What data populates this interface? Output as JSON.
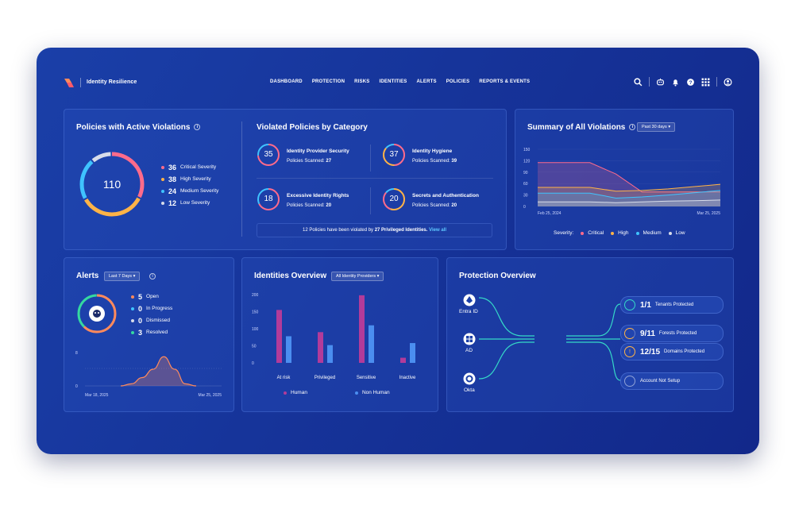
{
  "header": {
    "brand": "Identity Resilience",
    "nav": [
      "DASHBOARD",
      "PROTECTION",
      "RISKS",
      "IDENTITIES",
      "ALERTS",
      "POLICIES",
      "REPORTS & EVENTS"
    ]
  },
  "violations_card": {
    "title": "Policies with Active Violations",
    "total": "110",
    "items": [
      {
        "count": "36",
        "label": "Critical Severity",
        "color": "#ff6b8b"
      },
      {
        "count": "38",
        "label": "High Severity",
        "color": "#ffb347"
      },
      {
        "count": "24",
        "label": "Medium Severity",
        "color": "#3fc3ff"
      },
      {
        "count": "12",
        "label": "Low Severity",
        "color": "#d7dcea"
      }
    ]
  },
  "category_card": {
    "title": "Violated Policies by Category",
    "scanned_label": "Policies Scanned:",
    "policies": [
      {
        "num": "35",
        "name": "Identity Provider Security",
        "scanned": "27"
      },
      {
        "num": "37",
        "name": "Identity Hygiene",
        "scanned": "39"
      },
      {
        "num": "18",
        "name": "Excessive Identity Rights",
        "scanned": "20"
      },
      {
        "num": "20",
        "name": "Secrets and Authentication",
        "scanned": "20"
      }
    ],
    "banner_pre": "12 Policies have been violated by ",
    "banner_bold": "27 Privileged Identities.",
    "banner_link": "View all"
  },
  "summary_card": {
    "title": "Summary of All Violations",
    "range": "Past 30 days",
    "y_ticks": [
      "150",
      "120",
      "90",
      "60",
      "30",
      "0"
    ],
    "x_start": "Feb 25, 2024",
    "x_end": "Mar 25, 2025",
    "legend_title": "Severity:",
    "legend": [
      {
        "label": "Critical",
        "color": "#ff6b8b"
      },
      {
        "label": "High",
        "color": "#ffb347"
      },
      {
        "label": "Medium",
        "color": "#3fc3ff"
      },
      {
        "label": "Low",
        "color": "#d7dcea"
      }
    ]
  },
  "alerts_card": {
    "title": "Alerts",
    "range": "Last 7 Days",
    "items": [
      {
        "count": "5",
        "label": "Open",
        "color": "#ff8a5c"
      },
      {
        "count": "0",
        "label": "In Progress",
        "color": "#3fc3ff"
      },
      {
        "count": "0",
        "label": "Dismissed",
        "color": "#d7dcea"
      },
      {
        "count": "3",
        "label": "Resolved",
        "color": "#35d9a0"
      }
    ],
    "y_top": "8",
    "y_bottom": "0",
    "x_start": "Mar 18, 2025",
    "x_end": "Mar 25, 2025"
  },
  "identities_card": {
    "title": "Identities Overview",
    "filter": "All Identity Providers",
    "y_ticks": [
      "200",
      "150",
      "100",
      "50",
      "0"
    ],
    "legend": [
      {
        "label": "Human",
        "color": "#b23b9a"
      },
      {
        "label": "Non Human",
        "color": "#4b8ef0"
      }
    ]
  },
  "protection_card": {
    "title": "Protection Overview",
    "sources": [
      "Entra ID",
      "AD",
      "Okta"
    ],
    "tags": [
      {
        "value": "1/1",
        "label": "Tenants Protected"
      },
      {
        "value": "9/11",
        "label": "Forests Protected"
      },
      {
        "value": "12/15",
        "label": "Domains Protected"
      },
      {
        "value": "",
        "label": "Account Not Setup"
      }
    ]
  },
  "chart_data": [
    {
      "type": "pie",
      "title": "Policies with Active Violations",
      "categories": [
        "Critical Severity",
        "High Severity",
        "Medium Severity",
        "Low Severity"
      ],
      "values": [
        36,
        38,
        24,
        12
      ],
      "colors": [
        "#ff6b8b",
        "#ffb347",
        "#3fc3ff",
        "#d7dcea"
      ]
    },
    {
      "type": "area",
      "title": "Summary of All Violations",
      "x": [
        "Feb 25, 2024",
        "",
        "",
        "",
        "",
        "",
        "",
        "Mar 25, 2025"
      ],
      "ylim": [
        0,
        150
      ],
      "series": [
        {
          "name": "Critical",
          "values": [
            115,
            115,
            115,
            85,
            38,
            38,
            38,
            38
          ],
          "color": "#ff6b8b"
        },
        {
          "name": "High",
          "values": [
            50,
            50,
            50,
            40,
            42,
            46,
            52,
            58
          ],
          "color": "#ffb347"
        },
        {
          "name": "Medium",
          "values": [
            35,
            35,
            35,
            22,
            25,
            30,
            36,
            42
          ],
          "color": "#3fc3ff"
        },
        {
          "name": "Low",
          "values": [
            12,
            12,
            12,
            10,
            12,
            14,
            15,
            17
          ],
          "color": "#d7dcea"
        }
      ]
    },
    {
      "type": "area",
      "title": "Alerts",
      "x": [
        "Mar 18, 2025",
        "",
        "",
        "",
        "",
        "",
        "",
        "Mar 25, 2025"
      ],
      "ylim": [
        0,
        8
      ],
      "series": [
        {
          "name": "Open",
          "values": [
            0,
            0.5,
            2,
            4,
            7,
            4,
            0.5,
            0
          ],
          "color": "#ff8a5c"
        }
      ]
    },
    {
      "type": "bar",
      "title": "Identities Overview",
      "categories": [
        "At risk",
        "Privileged",
        "Sensitive",
        "Inactive"
      ],
      "ylim": [
        0,
        200
      ],
      "series": [
        {
          "name": "Human",
          "values": [
            155,
            90,
            198,
            15
          ],
          "color": "#b23b9a"
        },
        {
          "name": "Non Human",
          "values": [
            78,
            52,
            110,
            58
          ],
          "color": "#4b8ef0"
        }
      ]
    }
  ]
}
